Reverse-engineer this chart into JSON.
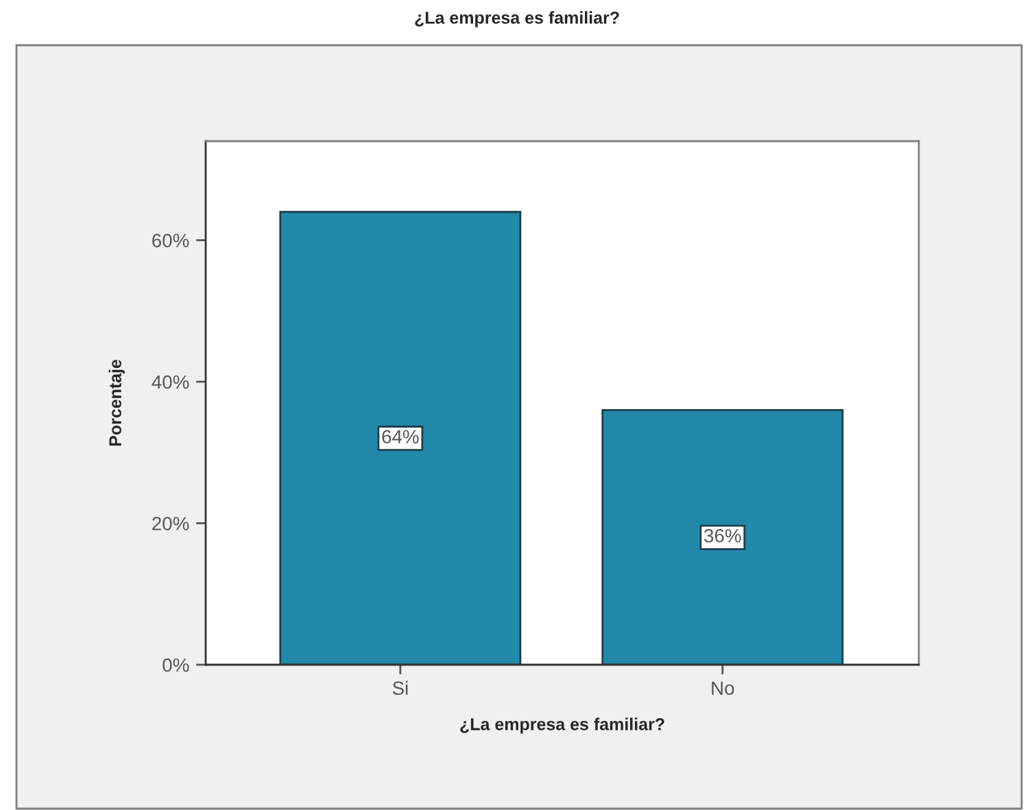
{
  "chart_data": {
    "type": "bar",
    "title": "¿La empresa es familiar?",
    "xlabel": "¿La empresa es familiar?",
    "ylabel": "Porcentaje",
    "categories": [
      "Si",
      "No"
    ],
    "values": [
      64,
      36
    ],
    "color": "#2389ab",
    "value_labels": [
      "64%",
      "36%"
    ],
    "ylim": [
      0,
      74
    ],
    "yticks": [
      {
        "value": 0,
        "label": "0%"
      },
      {
        "value": 20,
        "label": "20%"
      },
      {
        "value": 40,
        "label": "40%"
      },
      {
        "value": 60,
        "label": "60%"
      }
    ],
    "grid": false
  }
}
